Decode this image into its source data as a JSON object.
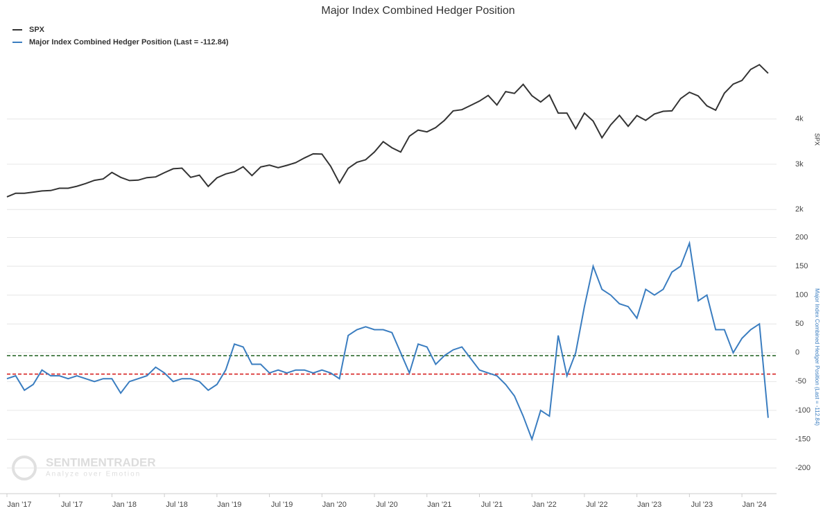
{
  "chart_data": [
    {
      "type": "line",
      "title": "Major Index Combined Hedger Position",
      "y_label": "SPX",
      "x": [
        "2017-01",
        "2017-02",
        "2017-03",
        "2017-04",
        "2017-05",
        "2017-06",
        "2017-07",
        "2017-08",
        "2017-09",
        "2017-10",
        "2017-11",
        "2017-12",
        "2018-01",
        "2018-02",
        "2018-03",
        "2018-04",
        "2018-05",
        "2018-06",
        "2018-07",
        "2018-08",
        "2018-09",
        "2018-10",
        "2018-11",
        "2018-12",
        "2019-01",
        "2019-02",
        "2019-03",
        "2019-04",
        "2019-05",
        "2019-06",
        "2019-07",
        "2019-08",
        "2019-09",
        "2019-10",
        "2019-11",
        "2019-12",
        "2020-01",
        "2020-02",
        "2020-03",
        "2020-04",
        "2020-05",
        "2020-06",
        "2020-07",
        "2020-08",
        "2020-09",
        "2020-10",
        "2020-11",
        "2020-12",
        "2021-01",
        "2021-02",
        "2021-03",
        "2021-04",
        "2021-05",
        "2021-06",
        "2021-07",
        "2021-08",
        "2021-09",
        "2021-10",
        "2021-11",
        "2021-12",
        "2022-01",
        "2022-02",
        "2022-03",
        "2022-04",
        "2022-05",
        "2022-06",
        "2022-07",
        "2022-08",
        "2022-09",
        "2022-10",
        "2022-11",
        "2022-12",
        "2023-01",
        "2023-02",
        "2023-03",
        "2023-04",
        "2023-05",
        "2023-06",
        "2023-07",
        "2023-08",
        "2023-09",
        "2023-10",
        "2023-11",
        "2023-12",
        "2024-01",
        "2024-02",
        "2024-03",
        "2024-04"
      ],
      "series": [
        {
          "name": "SPX",
          "color": "#333333",
          "values": [
            2280,
            2360,
            2360,
            2385,
            2410,
            2420,
            2470,
            2470,
            2515,
            2575,
            2645,
            2675,
            2820,
            2710,
            2640,
            2650,
            2705,
            2720,
            2815,
            2900,
            2915,
            2710,
            2760,
            2510,
            2700,
            2785,
            2835,
            2945,
            2750,
            2940,
            2980,
            2925,
            2975,
            3035,
            3140,
            3230,
            3225,
            2955,
            2585,
            2910,
            3045,
            3100,
            3270,
            3500,
            3365,
            3270,
            3620,
            3755,
            3715,
            3810,
            3970,
            4180,
            4205,
            4300,
            4395,
            4520,
            4310,
            4605,
            4565,
            4765,
            4515,
            4375,
            4530,
            4130,
            4130,
            3785,
            4130,
            3955,
            3585,
            3870,
            4080,
            3840,
            4075,
            3970,
            4110,
            4170,
            4180,
            4450,
            4590,
            4510,
            4290,
            4195,
            4570,
            4770,
            4850,
            5095,
            5200,
            5010
          ]
        }
      ],
      "ylim": [
        1850,
        5250
      ],
      "yticks": [
        {
          "value": 2000,
          "label": "2k"
        },
        {
          "value": 3000,
          "label": "3k"
        },
        {
          "value": 4000,
          "label": "4k"
        }
      ],
      "grid": true
    },
    {
      "type": "line",
      "y_label": "Major Index Combined Hedger Position (Last = -112.84)",
      "x": [
        "2017-01",
        "2017-02",
        "2017-03",
        "2017-04",
        "2017-05",
        "2017-06",
        "2017-07",
        "2017-08",
        "2017-09",
        "2017-10",
        "2017-11",
        "2017-12",
        "2018-01",
        "2018-02",
        "2018-03",
        "2018-04",
        "2018-05",
        "2018-06",
        "2018-07",
        "2018-08",
        "2018-09",
        "2018-10",
        "2018-11",
        "2018-12",
        "2019-01",
        "2019-02",
        "2019-03",
        "2019-04",
        "2019-05",
        "2019-06",
        "2019-07",
        "2019-08",
        "2019-09",
        "2019-10",
        "2019-11",
        "2019-12",
        "2020-01",
        "2020-02",
        "2020-03",
        "2020-04",
        "2020-05",
        "2020-06",
        "2020-07",
        "2020-08",
        "2020-09",
        "2020-10",
        "2020-11",
        "2020-12",
        "2021-01",
        "2021-02",
        "2021-03",
        "2021-04",
        "2021-05",
        "2021-06",
        "2021-07",
        "2021-08",
        "2021-09",
        "2021-10",
        "2021-11",
        "2021-12",
        "2022-01",
        "2022-02",
        "2022-03",
        "2022-04",
        "2022-05",
        "2022-06",
        "2022-07",
        "2022-08",
        "2022-09",
        "2022-10",
        "2022-11",
        "2022-12",
        "2023-01",
        "2023-02",
        "2023-03",
        "2023-04",
        "2023-05",
        "2023-06",
        "2023-07",
        "2023-08",
        "2023-09",
        "2023-10",
        "2023-11",
        "2023-12",
        "2024-01",
        "2024-02",
        "2024-03",
        "2024-04"
      ],
      "series": [
        {
          "name": "Major Index Combined Hedger Position (Last = -112.84)",
          "color": "#3a7dc0",
          "values": [
            -45,
            -40,
            -65,
            -55,
            -30,
            -40,
            -40,
            -45,
            -40,
            -45,
            -50,
            -45,
            -45,
            -70,
            -50,
            -45,
            -40,
            -25,
            -35,
            -50,
            -45,
            -45,
            -50,
            -65,
            -55,
            -30,
            15,
            10,
            -20,
            -20,
            -35,
            -30,
            -35,
            -30,
            -30,
            -35,
            -30,
            -35,
            -45,
            30,
            40,
            45,
            40,
            40,
            35,
            0,
            -35,
            15,
            10,
            -20,
            -5,
            5,
            10,
            -10,
            -30,
            -35,
            -40,
            -55,
            -75,
            -110,
            -150,
            -100,
            -110,
            30,
            -40,
            0,
            80,
            150,
            110,
            100,
            85,
            80,
            60,
            110,
            100,
            110,
            140,
            150,
            190,
            90,
            100,
            40,
            40,
            0,
            25,
            40,
            50,
            -112.84
          ]
        }
      ],
      "ylim": [
        -230,
        215
      ],
      "yticks": [
        -200,
        -150,
        -100,
        -50,
        0,
        50,
        100,
        150,
        200
      ],
      "reference_lines": [
        {
          "value": -5,
          "color": "#2e6b2e"
        },
        {
          "value": -37,
          "color": "#d62020"
        }
      ],
      "xticks": [
        {
          "value": "2017-01",
          "label": "Jan '17"
        },
        {
          "value": "2017-07",
          "label": "Jul '17"
        },
        {
          "value": "2018-01",
          "label": "Jan '18"
        },
        {
          "value": "2018-07",
          "label": "Jul '18"
        },
        {
          "value": "2019-01",
          "label": "Jan '19"
        },
        {
          "value": "2019-07",
          "label": "Jul '19"
        },
        {
          "value": "2020-01",
          "label": "Jan '20"
        },
        {
          "value": "2020-07",
          "label": "Jul '20"
        },
        {
          "value": "2021-01",
          "label": "Jan '21"
        },
        {
          "value": "2021-07",
          "label": "Jul '21"
        },
        {
          "value": "2022-01",
          "label": "Jan '22"
        },
        {
          "value": "2022-07",
          "label": "Jul '22"
        },
        {
          "value": "2023-01",
          "label": "Jan '23"
        },
        {
          "value": "2023-07",
          "label": "Jul '23"
        },
        {
          "value": "2024-01",
          "label": "Jan '24"
        }
      ],
      "grid": true
    }
  ],
  "watermark": {
    "title": "SENTIMENTRADER",
    "subtitle": "Analyze over Emotion"
  }
}
